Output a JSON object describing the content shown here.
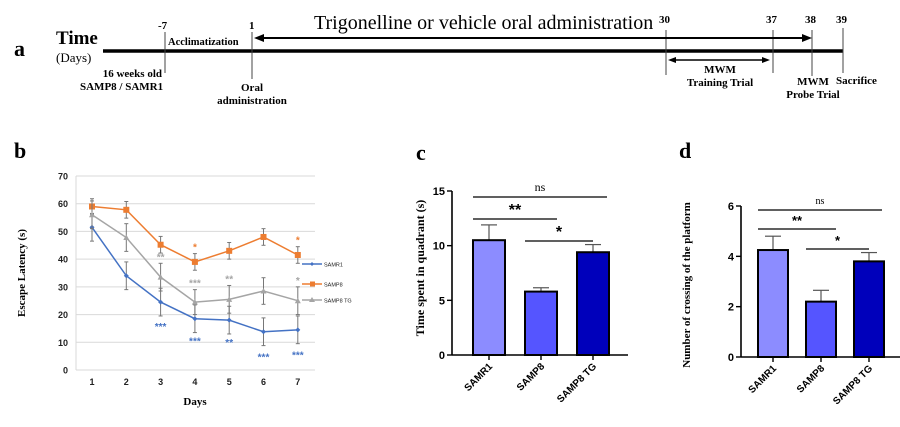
{
  "panel_a": {
    "letter": "a",
    "time_label": "Time",
    "days_label": "(Days)",
    "banner": "Trigonelline or vehicle oral administration",
    "ticks": [
      {
        "day": "-7",
        "label_lines": [
          "16 weeks old",
          "SAMP8 / SAMR1"
        ]
      },
      {
        "day": "1",
        "label_lines": [
          "Oral",
          "administration"
        ]
      },
      {
        "day": "30",
        "label_lines": []
      },
      {
        "day": "37",
        "label_lines": []
      },
      {
        "day": "38",
        "label_lines": [
          "MWM",
          "Probe Trial"
        ]
      },
      {
        "day": "39",
        "label_lines": [
          "Sacrifice"
        ]
      }
    ],
    "acclimatization": "Acclimatization",
    "training_lines": [
      "MWM",
      "Training Trial"
    ],
    "probe_lines": [
      "MWM",
      "Probe Trial"
    ],
    "sacrifice": "Sacrifice",
    "oral_lines": [
      "Oral",
      "administration"
    ],
    "start_lines": [
      "16 weeks old",
      "SAMP8 / SAMR1"
    ]
  },
  "chart_data": [
    {
      "panel": "b",
      "type": "line",
      "xlabel": "Days",
      "ylabel": "Escape Latency (s)",
      "x": [
        1,
        2,
        3,
        4,
        5,
        6,
        7
      ],
      "ylim": [
        0,
        70
      ],
      "yticks": [
        0,
        10,
        20,
        30,
        40,
        50,
        60,
        70
      ],
      "grid": true,
      "legend": "right",
      "series": [
        {
          "name": "SAMR1",
          "color": "#4472C4",
          "marker": "diamond",
          "values": [
            51.5,
            34,
            24.5,
            18.5,
            18,
            13.8,
            14.5
          ],
          "errors": [
            5,
            5,
            5,
            5,
            5,
            5,
            5
          ],
          "annotations": [
            "",
            "",
            "***",
            "***",
            "**",
            "***",
            "***"
          ]
        },
        {
          "name": "SAMP8",
          "color": "#ED7D31",
          "marker": "square",
          "values": [
            59,
            57.8,
            45.2,
            39,
            43,
            48,
            41.5
          ],
          "errors": [
            2.8,
            3,
            3,
            3,
            3,
            3,
            3
          ],
          "annotations": [
            "",
            "",
            "",
            "*",
            "",
            "",
            "*"
          ]
        },
        {
          "name": "SAMP8 TG",
          "color": "#A5A5A5",
          "marker": "triangle",
          "values": [
            56,
            47.8,
            33.5,
            24.5,
            25.5,
            28.5,
            25
          ],
          "errors": [
            5,
            5,
            5,
            4.5,
            5,
            4.8,
            5
          ],
          "annotations": [
            "",
            "",
            "**",
            "***",
            "**",
            "",
            "*"
          ]
        }
      ]
    },
    {
      "panel": "c",
      "type": "bar",
      "xlabel": "",
      "ylabel": "Time spent in quadrant (s)",
      "categories": [
        "SAMR1",
        "SAMP8",
        "SAMP8 TG"
      ],
      "values": [
        10.5,
        5.8,
        9.4
      ],
      "errors": [
        1.4,
        0.35,
        0.7
      ],
      "colors": [
        "#8C8CFF",
        "#5555FF",
        "#0000BB"
      ],
      "ylim": [
        0,
        15
      ],
      "yticks": [
        0,
        5,
        10,
        15
      ],
      "significance": [
        {
          "from": 0,
          "to": 2,
          "label": "ns"
        },
        {
          "from": 0,
          "to": 1,
          "label": "**"
        },
        {
          "from": 1,
          "to": 2,
          "label": "*"
        }
      ]
    },
    {
      "panel": "d",
      "type": "bar",
      "xlabel": "",
      "ylabel": "Number of crossing of the platform",
      "categories": [
        "SAMR1",
        "SAMP8",
        "SAMP8 TG"
      ],
      "values": [
        4.25,
        2.2,
        3.8
      ],
      "errors": [
        0.55,
        0.45,
        0.35
      ],
      "colors": [
        "#8C8CFF",
        "#5555FF",
        "#0000BB"
      ],
      "ylim": [
        0,
        6
      ],
      "yticks": [
        0,
        2,
        4,
        6
      ],
      "significance": [
        {
          "from": 0,
          "to": 2,
          "label": "ns"
        },
        {
          "from": 0,
          "to": 1,
          "label": "**"
        },
        {
          "from": 1,
          "to": 2,
          "label": "*"
        }
      ]
    }
  ],
  "labels": {
    "b": "b",
    "c": "c",
    "d": "d"
  }
}
